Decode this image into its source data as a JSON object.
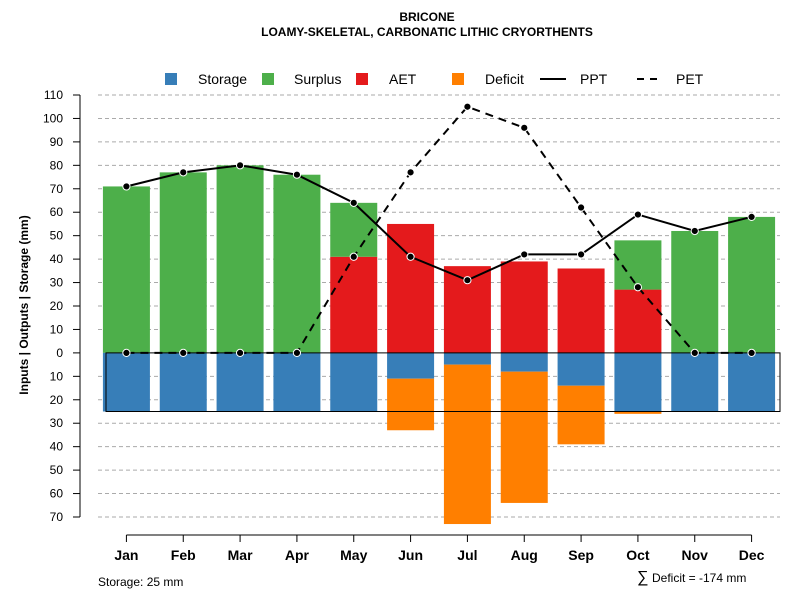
{
  "chart_data": {
    "type": "bar",
    "title": "BRICONE",
    "subtitle": "LOAMY-SKELETAL, CARBONATIC LITHIC CRYORTHENTS",
    "ylabel": "Inputs | Outputs | Storage    (mm)",
    "ylim": [
      -70,
      110
    ],
    "y_tick_values": [
      110,
      100,
      90,
      80,
      70,
      60,
      50,
      40,
      30,
      20,
      10,
      0,
      -10,
      -20,
      -30,
      -40,
      -50,
      -60,
      -70
    ],
    "y_tick_labels": [
      "110",
      "100",
      "90",
      "80",
      "70",
      "60",
      "50",
      "40",
      "30",
      "20",
      "10",
      "0",
      "10",
      "20",
      "30",
      "40",
      "50",
      "60",
      "70"
    ],
    "categories": [
      "Jan",
      "Feb",
      "Mar",
      "Apr",
      "May",
      "Jun",
      "Jul",
      "Aug",
      "Sep",
      "Oct",
      "Nov",
      "Dec"
    ],
    "series": [
      {
        "name": "Storage",
        "color": "#377EB8",
        "values": [
          -25,
          -25,
          -25,
          -25,
          -25,
          -11,
          -5,
          -8,
          -14,
          -25,
          -25,
          -25
        ]
      },
      {
        "name": "Surplus",
        "color": "#4DAF4A",
        "values": [
          71,
          77,
          80,
          76,
          23,
          0,
          0,
          0,
          0,
          21,
          52,
          58
        ]
      },
      {
        "name": "AET",
        "color": "#E41A1C",
        "values": [
          0,
          0,
          0,
          0,
          41,
          55,
          37,
          39,
          36,
          27,
          0,
          0
        ]
      },
      {
        "name": "Deficit",
        "color": "#FF7F00",
        "values": [
          0,
          0,
          0,
          0,
          0,
          -22,
          -68,
          -56,
          -25,
          -1,
          0,
          0
        ]
      },
      {
        "name": "PPT",
        "color": "#000000",
        "style": "solid",
        "values": [
          71,
          77,
          80,
          76,
          64,
          41,
          31,
          42,
          42,
          59,
          52,
          58
        ]
      },
      {
        "name": "PET",
        "color": "#000000",
        "style": "dashed",
        "values": [
          0,
          0,
          0,
          0,
          41,
          77,
          105,
          96,
          62,
          28,
          0,
          0
        ]
      }
    ],
    "storage_capacity": 25,
    "legend": {
      "position": "top",
      "items": [
        {
          "label": "Storage",
          "color": "#377EB8",
          "kind": "square"
        },
        {
          "label": "Surplus",
          "color": "#4DAF4A",
          "kind": "square"
        },
        {
          "label": "AET",
          "color": "#E41A1C",
          "kind": "square"
        },
        {
          "label": "Deficit",
          "color": "#FF7F00",
          "kind": "square"
        },
        {
          "label": "PPT",
          "color": "#000000",
          "kind": "solid-line"
        },
        {
          "label": "PET",
          "color": "#000000",
          "kind": "dashed-line"
        }
      ]
    },
    "footnote_left": "Storage: 25 mm",
    "footnote_right_symbol": "∑",
    "footnote_right": "Deficit = -174 mm"
  }
}
